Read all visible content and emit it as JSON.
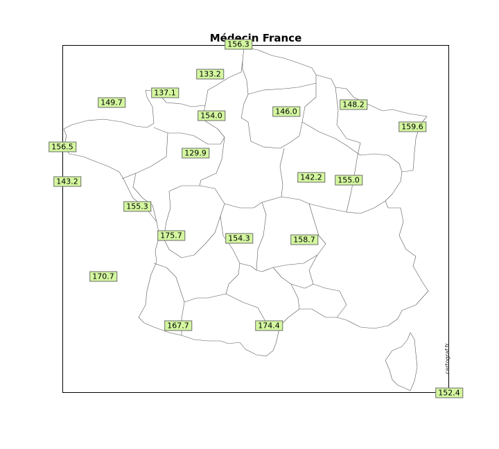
{
  "title": "Médecin France",
  "watermark": "cartograf.fr",
  "regions": [
    {
      "id": "nord-pas-de-calais",
      "value": "156.3"
    },
    {
      "id": "haute-normandie",
      "value": "133.2"
    },
    {
      "id": "basse-normandie",
      "value": "137.1"
    },
    {
      "id": "bretagne-north",
      "value": "149.7"
    },
    {
      "id": "picardie",
      "value": "154.0"
    },
    {
      "id": "ile-de-france",
      "value": "146.0"
    },
    {
      "id": "lorraine",
      "value": "148.2"
    },
    {
      "id": "alsace",
      "value": "159.6"
    },
    {
      "id": "bretagne",
      "value": "156.5"
    },
    {
      "id": "centre",
      "value": "129.9"
    },
    {
      "id": "pays-de-la-loire",
      "value": "143.2"
    },
    {
      "id": "bourgogne",
      "value": "142.2"
    },
    {
      "id": "franche-comte",
      "value": "155.0"
    },
    {
      "id": "poitou-charentes",
      "value": "155.3"
    },
    {
      "id": "aquitaine-north",
      "value": "175.7"
    },
    {
      "id": "limousin",
      "value": "154.3"
    },
    {
      "id": "auvergne",
      "value": "158.7"
    },
    {
      "id": "aquitaine",
      "value": "170.7"
    },
    {
      "id": "midi-pyrenees",
      "value": "167.7"
    },
    {
      "id": "languedoc-roussillon",
      "value": "174.4"
    },
    {
      "id": "corse",
      "value": "152.4"
    }
  ]
}
